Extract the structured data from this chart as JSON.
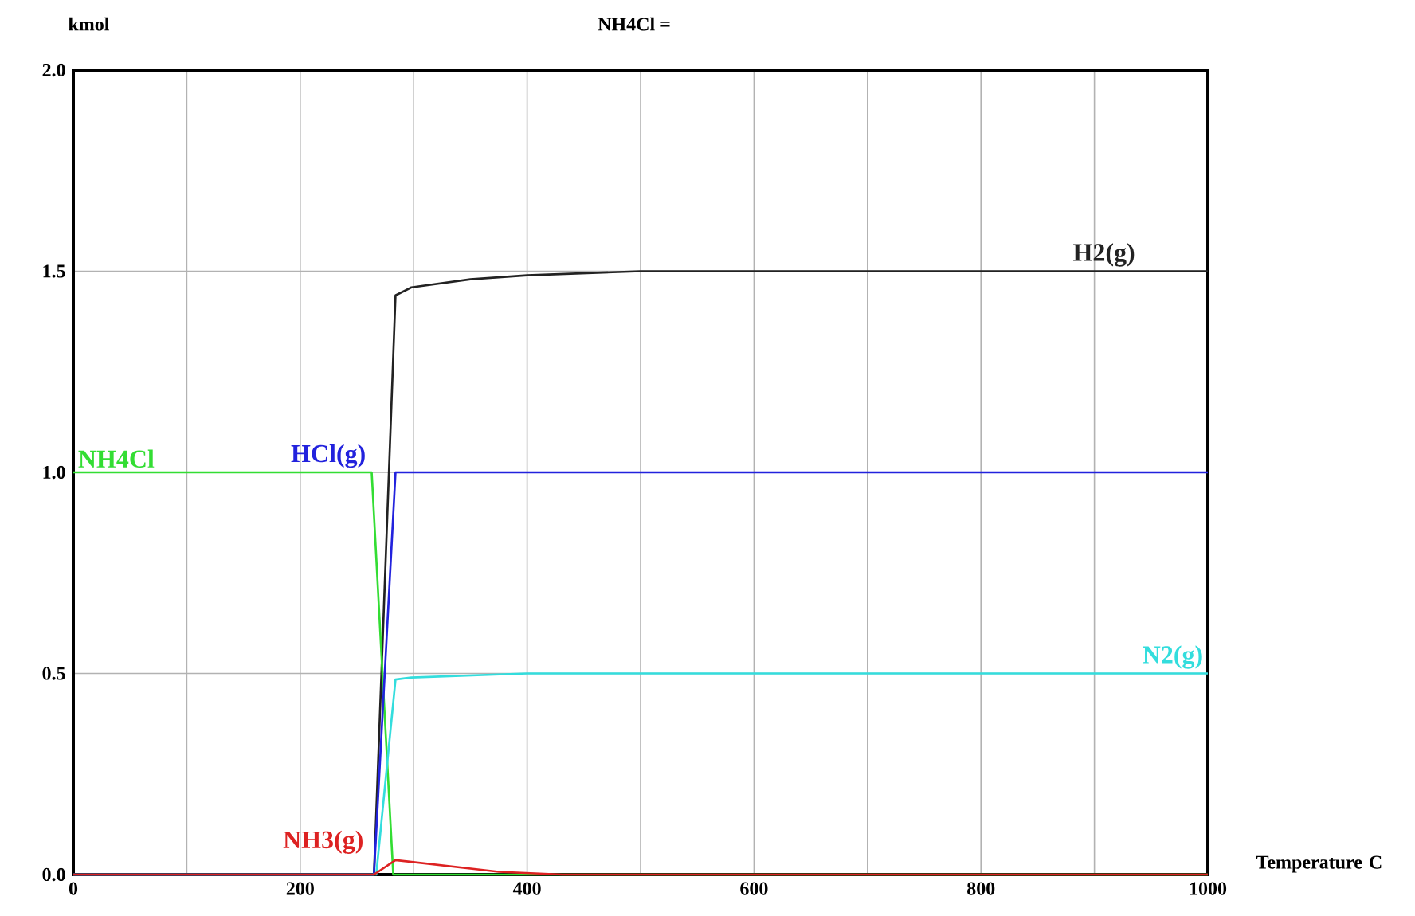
{
  "chart_data": {
    "type": "line",
    "title": "NH4Cl =",
    "ylabel": "kmol",
    "xlabel": "Temperature C",
    "xlim": [
      0,
      1000
    ],
    "ylim": [
      0,
      2
    ],
    "xticks": [
      0,
      {
        "value": 100,
        "label": null
      },
      200,
      {
        "value": 300,
        "label": null
      },
      400,
      {
        "value": 500,
        "label": null
      },
      600,
      {
        "value": 700,
        "label": null
      },
      800,
      {
        "value": 900,
        "label": null
      },
      1000
    ],
    "yticks": [
      {
        "value": 0,
        "label": "0.0"
      },
      {
        "value": 0.5,
        "label": "0.5"
      },
      {
        "value": 1,
        "label": "1.0"
      },
      {
        "value": 1.5,
        "label": "1.5"
      },
      {
        "value": 2,
        "label": "2.0"
      }
    ],
    "grid": true,
    "legend": false,
    "marker": "none",
    "line_style": "solid",
    "series": [
      {
        "name": "H2(g)",
        "color": "#222222",
        "x": [
          0,
          265,
          284,
          298,
          350,
          400,
          500,
          1000
        ],
        "values": [
          0,
          0,
          1.44,
          1.46,
          1.48,
          1.49,
          1.5,
          1.5
        ]
      },
      {
        "name": "NH4Cl",
        "color": "#33dd33",
        "x": [
          0,
          263,
          282,
          1000
        ],
        "values": [
          1,
          1,
          0,
          0
        ]
      },
      {
        "name": "HCl(g)",
        "color": "#2222dd",
        "x": [
          0,
          265,
          284,
          1000
        ],
        "values": [
          0,
          0,
          1,
          1
        ]
      },
      {
        "name": "N2(g)",
        "color": "#33dddd",
        "x": [
          0,
          267,
          284,
          298,
          400,
          1000
        ],
        "values": [
          0,
          0,
          0.485,
          0.49,
          0.5,
          0.5
        ]
      },
      {
        "name": "NH3(g)",
        "color": "#dd2222",
        "x": [
          0,
          265,
          284,
          375,
          431,
          1000
        ],
        "values": [
          0,
          0,
          0.036,
          0.007,
          0,
          0
        ]
      }
    ]
  }
}
